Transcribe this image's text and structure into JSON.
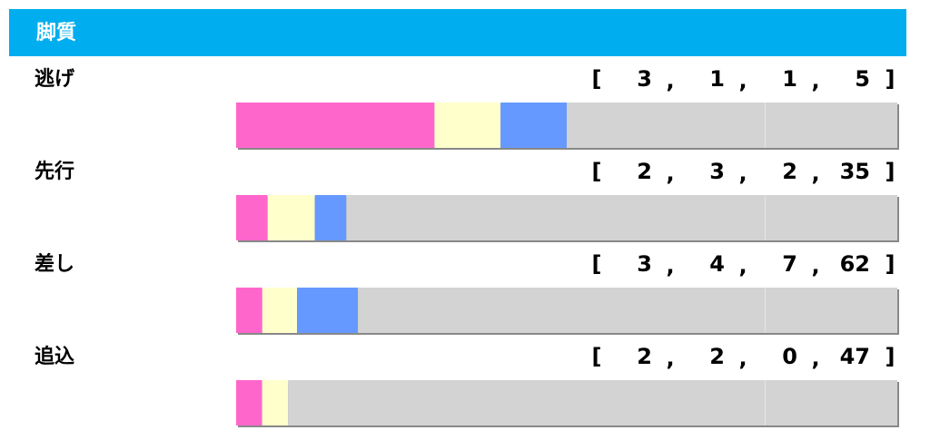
{
  "chart_data": {
    "type": "stacked-bar-100",
    "title": "脚質",
    "categories": [
      "逃げ",
      "先行",
      "差し",
      "追込"
    ],
    "series": [
      {
        "color": "#ff66cc",
        "values": [
          3,
          2,
          3,
          2
        ]
      },
      {
        "color": "#ffffcc",
        "values": [
          1,
          3,
          4,
          2
        ]
      },
      {
        "color": "#6699ff",
        "values": [
          1,
          2,
          7,
          0
        ]
      },
      {
        "color": "#d3d3d3",
        "values": [
          5,
          35,
          62,
          47
        ]
      }
    ]
  }
}
